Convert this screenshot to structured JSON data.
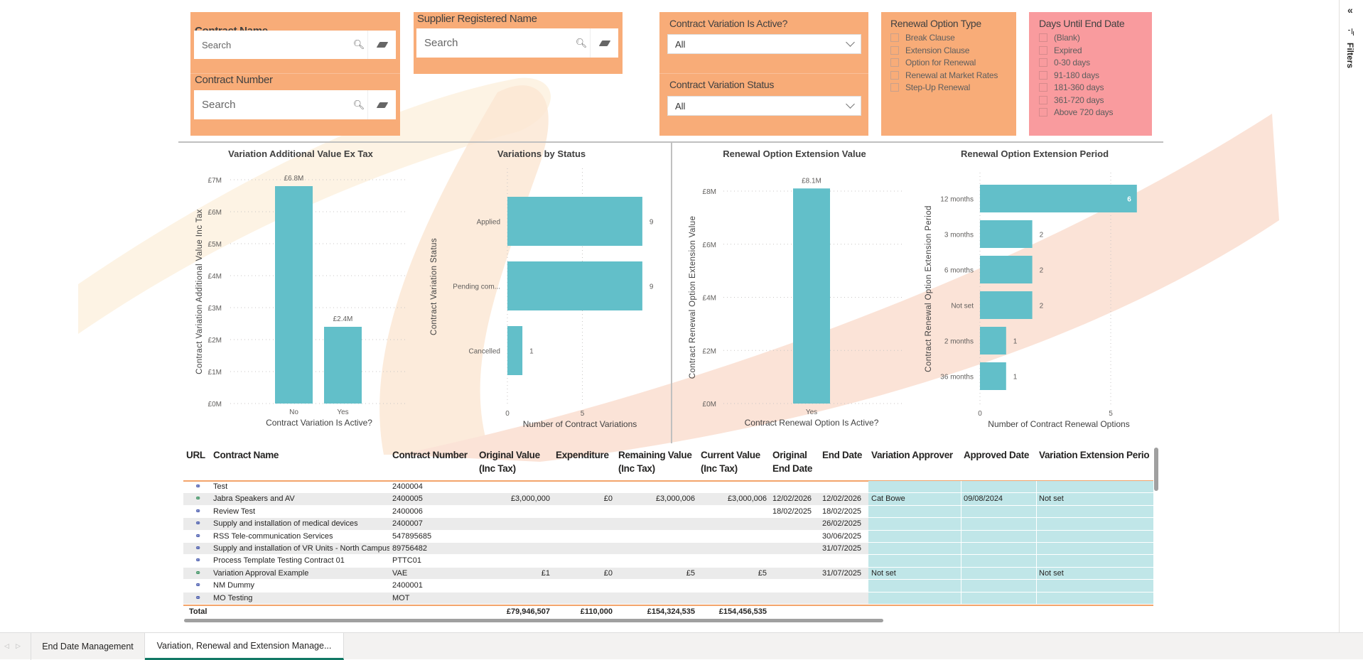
{
  "filters_pane": {
    "title": "Filters",
    "collapse_icon": "double-chevron-left-icon",
    "filter_icon": "filter-icon"
  },
  "slicers": {
    "contract_name": {
      "title": "Contract Name",
      "placeholder": "Search"
    },
    "contract_number": {
      "title": "Contract Number",
      "placeholder": "Search"
    },
    "supplier": {
      "title": "Supplier Registered Name",
      "placeholder": "Search"
    },
    "variation_active": {
      "title": "Contract Variation Is Active?",
      "value": "All"
    },
    "variation_status": {
      "title": "Contract Variation Status",
      "value": "All"
    },
    "renewal_type": {
      "title": "Renewal Option Type",
      "items": [
        "Break Clause",
        "Extension Clause",
        "Option for Renewal",
        "Renewal at Market Rates",
        "Step-Up Renewal"
      ]
    },
    "days_until_end": {
      "title": "Days Until End Date",
      "items": [
        "(Blank)",
        "Expired",
        "0-30 days",
        "91-180 days",
        "181-360 days",
        "361-720 days",
        "Above 720 days"
      ]
    }
  },
  "colors": {
    "slicer_orange": "#f8ac78",
    "slicer_pink": "#f99b9e",
    "bar": "#62bfc9",
    "teal_cells": "#c0e6e8",
    "accent_line": "#f3a46b",
    "active_tab": "#117865"
  },
  "chart_data": [
    {
      "type": "bar",
      "title": "Variation Additional Value Ex Tax",
      "xlabel": "Contract Variation Is Active?",
      "ylabel": "Contract Variation Additional Value Inc Tax",
      "categories": [
        "No",
        "Yes"
      ],
      "values": [
        6.8,
        2.4
      ],
      "data_labels": [
        "£6.8M",
        "£2.4M"
      ],
      "unit": "£M",
      "ylim": [
        0,
        7
      ],
      "yticks": [
        "£0M",
        "£1M",
        "£2M",
        "£3M",
        "£4M",
        "£5M",
        "£6M",
        "£7M"
      ],
      "grid": true
    },
    {
      "type": "bar",
      "orientation": "horizontal",
      "title": "Variations by Status",
      "xlabel": "Number of Contract Variations",
      "ylabel": "Contract Variation Status",
      "categories": [
        "Applied",
        "Pending com...",
        "Cancelled"
      ],
      "values": [
        9,
        9,
        1
      ],
      "data_labels": [
        "9",
        "9",
        "1"
      ],
      "xlim": [
        0,
        9
      ],
      "xticks": [
        "0",
        "5"
      ],
      "grid": true
    },
    {
      "type": "bar",
      "title": "Renewal Option Extension Value",
      "xlabel": "Contract Renewal Option Is Active?",
      "ylabel": "Contract Renewal Option Extension Value",
      "categories": [
        "Yes"
      ],
      "values": [
        8.1
      ],
      "data_labels": [
        "£8.1M"
      ],
      "unit": "£M",
      "ylim": [
        0,
        8
      ],
      "yticks": [
        "£0M",
        "£2M",
        "£4M",
        "£6M",
        "£8M"
      ],
      "grid": true
    },
    {
      "type": "bar",
      "orientation": "horizontal",
      "title": "Renewal Option Extension Period",
      "xlabel": "Number of Contract Renewal Options",
      "ylabel": "Contract Renewal Option Extension Period",
      "categories": [
        "12 months",
        "3 months",
        "6 months",
        "Not set",
        "2 months",
        "36 months"
      ],
      "values": [
        6,
        2,
        2,
        2,
        1,
        1
      ],
      "data_labels": [
        "6",
        "2",
        "2",
        "2",
        "1",
        "1"
      ],
      "xlim": [
        0,
        6
      ],
      "xticks": [
        "0",
        "5"
      ],
      "grid": true
    }
  ],
  "table": {
    "columns": [
      "URL",
      "Contract Name",
      "Contract Number",
      "Original Value (Inc Tax)",
      "Expenditure",
      "Remaining Value (Inc Tax)",
      "Current Value (Inc Tax)",
      "Original End Date",
      "End Date",
      "Variation Approver",
      "Approved Date",
      "Variation Extension Perio"
    ],
    "rows": [
      {
        "url_icon": "link-icon",
        "url_icon_color": "#3a4ea8",
        "cells": [
          "Test",
          "2400004",
          "",
          "",
          "",
          "",
          "",
          "",
          "",
          "",
          ""
        ]
      },
      {
        "url_icon": "link-icon",
        "url_icon_color": "#2e8b57",
        "cells": [
          "Jabra Speakers and AV",
          "2400005",
          "£3,000,000",
          "£0",
          "£3,000,006",
          "£3,000,006",
          "12/02/2026",
          "12/02/2026",
          "Cat Bowe",
          "09/08/2024",
          "Not set"
        ]
      },
      {
        "url_icon": "link-icon",
        "url_icon_color": "#3a4ea8",
        "cells": [
          "Review Test",
          "2400006",
          "",
          "",
          "",
          "",
          "18/02/2025",
          "18/02/2025",
          "",
          "",
          ""
        ]
      },
      {
        "url_icon": "link-icon",
        "url_icon_color": "#3a4ea8",
        "cells": [
          "Supply and installation of medical devices",
          "2400007",
          "",
          "",
          "",
          "",
          "",
          "26/02/2025",
          "",
          "",
          ""
        ]
      },
      {
        "url_icon": "link-icon",
        "url_icon_color": "#3a4ea8",
        "cells": [
          "RSS Tele-communication Services",
          "547895685",
          "",
          "",
          "",
          "",
          "",
          "30/06/2025",
          "",
          "",
          ""
        ]
      },
      {
        "url_icon": "link-icon",
        "url_icon_color": "#3a4ea8",
        "cells": [
          "Supply and installation of VR Units - North Campus",
          "89756482",
          "",
          "",
          "",
          "",
          "",
          "31/07/2025",
          "",
          "",
          ""
        ]
      },
      {
        "url_icon": "link-icon",
        "url_icon_color": "#3a4ea8",
        "cells": [
          "Process Template Testing Contract 01",
          "PTTC01",
          "",
          "",
          "",
          "",
          "",
          "",
          "",
          "",
          ""
        ]
      },
      {
        "url_icon": "link-icon",
        "url_icon_color": "#2e8b57",
        "cells": [
          "Variation Approval Example",
          "VAE",
          "£1",
          "£0",
          "£5",
          "£5",
          "",
          "31/07/2025",
          "Not set",
          "",
          "Not set"
        ]
      },
      {
        "url_icon": "link-icon",
        "url_icon_color": "#3a4ea8",
        "cells": [
          "NM Dummy",
          "2400001",
          "",
          "",
          "",
          "",
          "",
          "",
          "",
          "",
          ""
        ]
      },
      {
        "url_icon": "link-icon",
        "url_icon_color": "#3a4ea8",
        "cells": [
          "MO Testing",
          "MOT",
          "",
          "",
          "",
          "",
          "",
          "",
          "",
          "",
          ""
        ]
      }
    ],
    "total": {
      "label": "Total",
      "cells": [
        "",
        "",
        "£79,946,507",
        "£110,000",
        "£154,324,535",
        "£154,456,535",
        "",
        "",
        "",
        "",
        ""
      ]
    }
  },
  "tabs": [
    {
      "label": "End Date Management",
      "active": false
    },
    {
      "label": "Variation, Renewal and Extension Manage...",
      "active": true
    }
  ]
}
